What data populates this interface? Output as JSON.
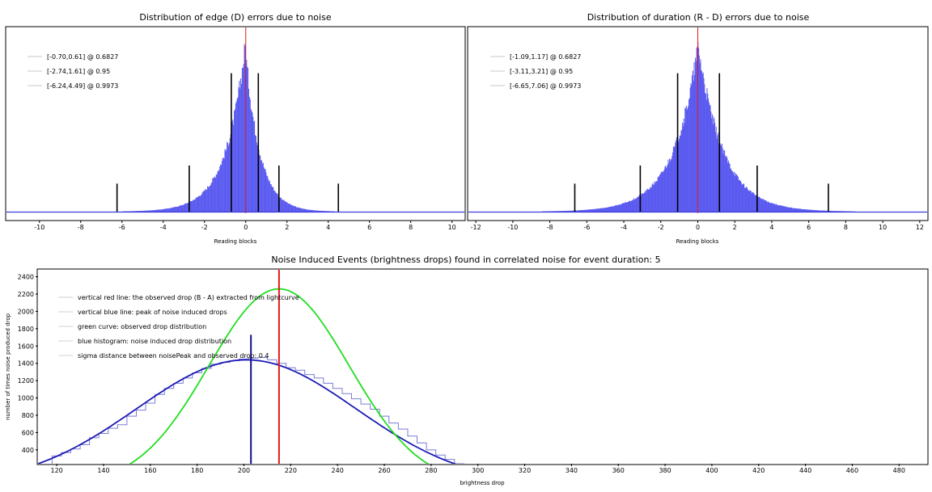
{
  "chart_data": [
    {
      "type": "histogram",
      "title": "Distribution of edge (D) errors due to noise",
      "xlabel": "Reading blocks",
      "xlim": [
        -11.6,
        10.6
      ],
      "xticks": [
        -10,
        -8,
        -6,
        -4,
        -2,
        0,
        2,
        4,
        6,
        8,
        10
      ],
      "center_line": 0,
      "legend": [
        "[-0.70,0.61] @ 0.6827",
        "[-2.74,1.61] @ 0.95",
        "[-6.24,4.49] @ 0.9973"
      ],
      "markers": [
        {
          "x": -6.24,
          "h": 0.17
        },
        {
          "x": -2.74,
          "h": 0.28
        },
        {
          "x": -0.7,
          "h": 0.84
        },
        {
          "x": 0.61,
          "h": 0.84
        },
        {
          "x": 1.61,
          "h": 0.28
        },
        {
          "x": 4.49,
          "h": 0.17
        }
      ],
      "dist": {
        "mu": -0.05,
        "s_left": 0.95,
        "s_right": 0.7,
        "peak": 1.0
      }
    },
    {
      "type": "histogram",
      "title": "Distribution of duration (R - D) errors due to noise",
      "xlabel": "Reading blocks",
      "xlim": [
        -12.4,
        12.4
      ],
      "xticks": [
        -12,
        -10,
        -8,
        -6,
        -4,
        -2,
        0,
        2,
        4,
        6,
        8,
        10,
        12
      ],
      "center_line": 0,
      "legend": [
        "[-1.09,1.17] @ 0.6827",
        "[-3.11,3.21] @ 0.95",
        "[-6.65,7.06] @ 0.9973"
      ],
      "markers": [
        {
          "x": -6.65,
          "h": 0.17
        },
        {
          "x": -3.11,
          "h": 0.28
        },
        {
          "x": -1.09,
          "h": 0.84
        },
        {
          "x": 1.17,
          "h": 0.84
        },
        {
          "x": 3.21,
          "h": 0.28
        },
        {
          "x": 7.06,
          "h": 0.17
        }
      ],
      "dist": {
        "mu": 0.0,
        "s_left": 1.35,
        "s_right": 1.35,
        "peak": 1.0
      }
    },
    {
      "type": "histogram",
      "title": "Noise Induced Events (brightness drops) found in correlated noise for event duration: 5",
      "xlabel": "brightness drop",
      "ylabel": "number of times noise produced drop",
      "xlim": [
        112,
        492
      ],
      "ylim": [
        240,
        2480
      ],
      "xticks": [
        120,
        140,
        160,
        180,
        200,
        220,
        240,
        260,
        280,
        300,
        320,
        340,
        360,
        380,
        400,
        420,
        440,
        460,
        480
      ],
      "yticks": [
        400,
        600,
        800,
        1000,
        1200,
        1400,
        1600,
        1800,
        2000,
        2200,
        2400
      ],
      "legend": [
        "vertical red line: the observed drop (B - A) extracted from lightcurve",
        "vertical blue line: peak of noise induced drops",
        "green curve: observed drop distribution",
        "blue histogram: noise induced drop distribution",
        "sigma distance between noisePeak and observed drop: 0.4"
      ],
      "observed_drop": 215,
      "noise_peak": 203,
      "noise_peak_bar_top": 1730,
      "green_curve": {
        "mu": 215,
        "sigma": 30,
        "peak": 2260
      },
      "blue_curve": {
        "mu": 201,
        "sigma": 47,
        "peak": 1440
      },
      "blue_histogram": {
        "bin_width": 4,
        "x_start": 114,
        "values": [
          230,
          330,
          370,
          410,
          460,
          540,
          590,
          650,
          690,
          790,
          860,
          940,
          1040,
          1110,
          1170,
          1230,
          1290,
          1340,
          1390,
          1410,
          1430,
          1450,
          1460,
          1470,
          1440,
          1400,
          1350,
          1320,
          1270,
          1230,
          1170,
          1110,
          1050,
          990,
          930,
          870,
          790,
          710,
          640,
          560,
          480,
          400,
          340,
          290,
          240,
          200
        ]
      }
    }
  ]
}
